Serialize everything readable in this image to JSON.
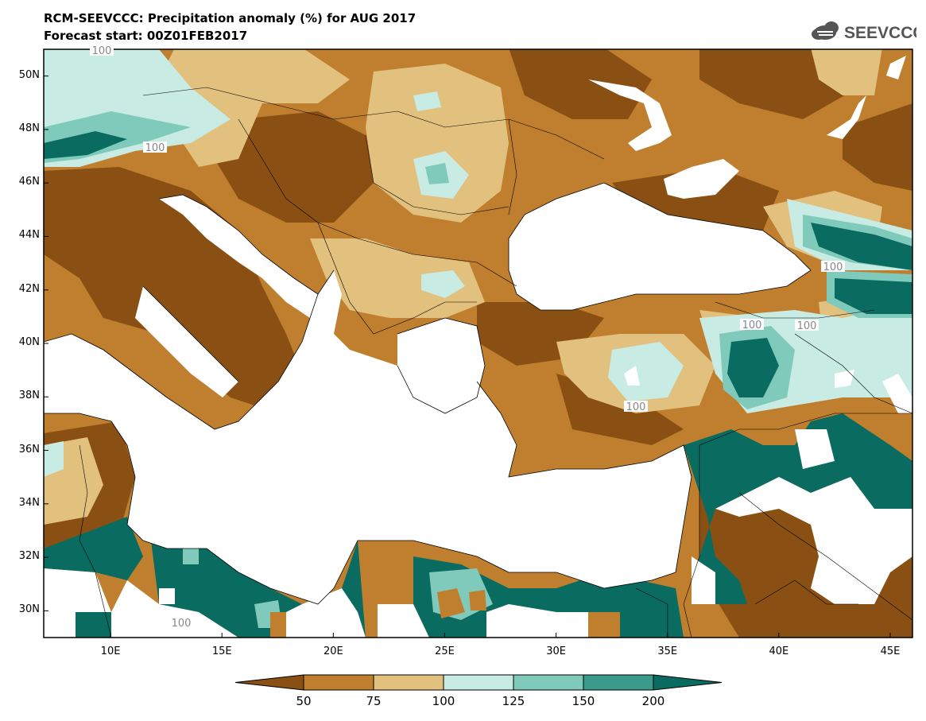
{
  "header": {
    "title_line1": "RCM-SEEVCCC: Precipitation anomaly (%) for AUG 2017",
    "title_line2": "Forecast start: 00Z01FEB2017",
    "logo_text": "SEEVCCC"
  },
  "map": {
    "projection": "lat-lon",
    "extent": {
      "lon_min": 7,
      "lon_max": 46,
      "lat_min": 29,
      "lat_max": 51
    },
    "lat_labels": [
      "50N",
      "48N",
      "46N",
      "44N",
      "42N",
      "40N",
      "38N",
      "36N",
      "34N",
      "32N",
      "30N"
    ],
    "lon_labels": [
      "10E",
      "15E",
      "20E",
      "25E",
      "30E",
      "35E",
      "40E",
      "45E"
    ],
    "contour_labels": [
      "100",
      "100",
      "100",
      "100",
      "100",
      "100",
      "100",
      "100"
    ]
  },
  "colorbar": {
    "colors": [
      "#8a4f12",
      "#bf7f2e",
      "#e2c07e",
      "#c8ebe3",
      "#7fcabb",
      "#3a9a8c",
      "#0a6b60"
    ],
    "tick_labels": [
      "50",
      "75",
      "100",
      "125",
      "150",
      "200"
    ]
  },
  "colors": {
    "dark_brown": "#8a4f12",
    "brown": "#bf7f2e",
    "tan": "#e2c07e",
    "light_teal": "#c8ebe3",
    "teal": "#7fcabb",
    "dark_teal": "#3a9a8c",
    "deep_teal": "#0a6b60"
  }
}
